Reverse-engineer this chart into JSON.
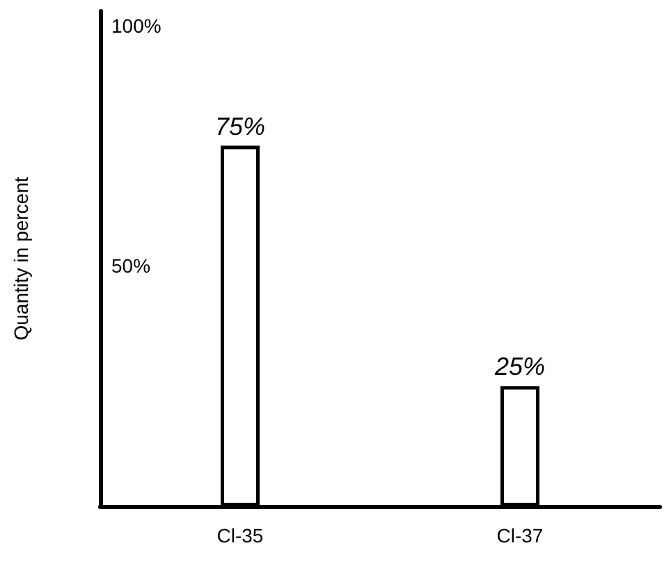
{
  "chart_data": {
    "type": "bar",
    "ylabel": "Quantity in percent",
    "categories": [
      "Cl-35",
      "Cl-37"
    ],
    "values": [
      75,
      25
    ],
    "value_labels": [
      "75%",
      "25%"
    ],
    "color": "#ffffff",
    "ylim": [
      0,
      103
    ],
    "yticks": [
      {
        "value": 50,
        "label": "50%"
      },
      {
        "value": 100,
        "label": "100%"
      }
    ],
    "grid": false
  }
}
